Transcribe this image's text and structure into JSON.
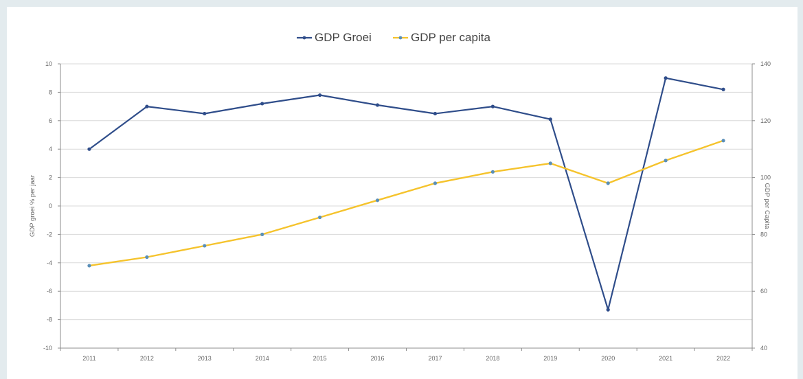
{
  "chart_data": {
    "type": "line",
    "categories": [
      "2011",
      "2012",
      "2013",
      "2014",
      "2015",
      "2016",
      "2017",
      "2018",
      "2019",
      "2020",
      "2021",
      "2022"
    ],
    "series": [
      {
        "name": "GDP Groei",
        "axis": "left",
        "color": "#2f4d8a",
        "marker_color": "#2f4d8a",
        "values": [
          4.0,
          7.0,
          6.5,
          7.2,
          7.8,
          7.1,
          6.5,
          7.0,
          6.1,
          -7.3,
          9.0,
          8.2
        ]
      },
      {
        "name": "GDP per capita",
        "axis": "right",
        "color": "#f5c32c",
        "marker_color": "#5a8fb8",
        "values": [
          69,
          72,
          76,
          80,
          86,
          92,
          98,
          102,
          105,
          98,
          106,
          113
        ]
      }
    ],
    "left_axis": {
      "label": "GDP groei % per jaar",
      "ylim": [
        -10,
        10
      ],
      "ticks": [
        "10",
        "8",
        "6",
        "4",
        "2",
        "0",
        "-2",
        "-4",
        "-6",
        "-8",
        "-10"
      ]
    },
    "right_axis": {
      "label": "GDP per Capita",
      "ylim": [
        40,
        140
      ],
      "ticks": [
        "140",
        "120",
        "100",
        "80",
        "60",
        "40"
      ]
    },
    "grid": true,
    "legend_position": "top-center",
    "title": ""
  }
}
